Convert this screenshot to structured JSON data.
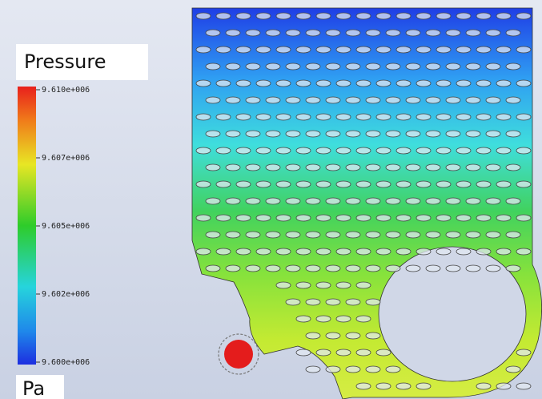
{
  "legend": {
    "title": "Pressure",
    "unit": "Pa",
    "ticks": [
      "9.610e+006",
      "9.607e+006",
      "9.605e+006",
      "9.602e+006",
      "9.600e+006"
    ]
  }
}
